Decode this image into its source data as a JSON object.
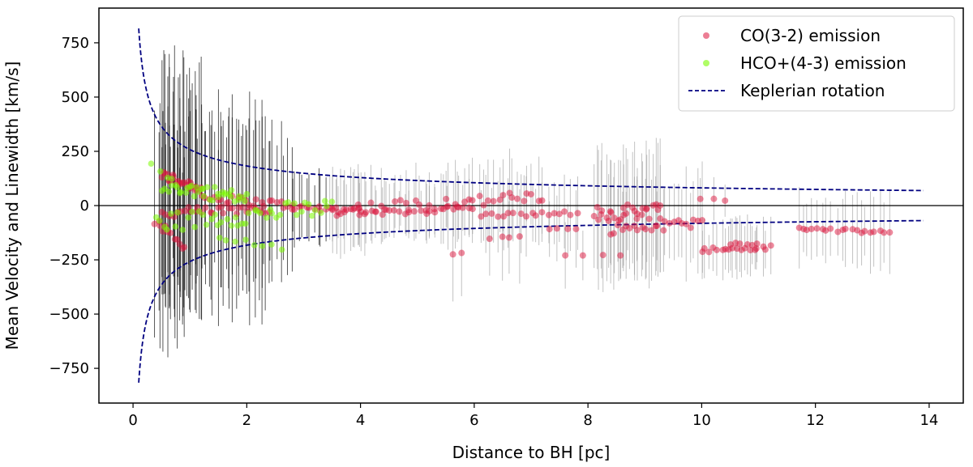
{
  "chart_data": {
    "type": "scatter",
    "title": "",
    "xlabel": "Distance to BH [pc]",
    "ylabel": "Mean Velocity and Linewidth [km/s]",
    "xlim": [
      -0.6,
      14.6
    ],
    "ylim": [
      -910,
      910
    ],
    "xticks": [
      0,
      2,
      4,
      6,
      8,
      10,
      12,
      14
    ],
    "yticks": [
      -750,
      -500,
      -250,
      0,
      250,
      500,
      750
    ],
    "xtick_labels": [
      "0",
      "2",
      "4",
      "6",
      "8",
      "10",
      "12",
      "14"
    ],
    "ytick_labels": [
      "−750",
      "−500",
      "−250",
      "0",
      "250",
      "500",
      "750"
    ],
    "grid": false,
    "legend_position": "top-right",
    "legend": [
      {
        "label": "CO(3-2) emission",
        "kind": "marker",
        "color": "#dc143c"
      },
      {
        "label": "HCO+(4-3) emission",
        "kind": "marker",
        "color": "#7cfc00"
      },
      {
        "label": "Keplerian rotation",
        "kind": "dashed-line",
        "color": "#000080"
      }
    ],
    "zero_line": 0,
    "keplerian": {
      "coefficient": 258,
      "x_start": 0.1,
      "x_end": 13.9
    },
    "colors": {
      "co": "#dc143c",
      "hco": "#7cfc00",
      "kepler": "#000080",
      "errorbar_inner": "#000000",
      "errorbar_outer": "#9a9a9a"
    },
    "series": [
      {
        "name": "CO(3-2) emission",
        "segments": [
          {
            "x0": 0.5,
            "x1": 1.2,
            "y0": 140,
            "y1": 80,
            "n": 24,
            "jitter": 25,
            "err": 500
          },
          {
            "x0": 0.5,
            "x1": 2.4,
            "y0": -40,
            "y1": -10,
            "n": 30,
            "jitter": 25,
            "err": 420
          },
          {
            "x0": 0.4,
            "x1": 0.9,
            "y0": -70,
            "y1": -190,
            "n": 12,
            "jitter": 20,
            "err": 450
          },
          {
            "x0": 1.2,
            "x1": 2.8,
            "y0": 40,
            "y1": 0,
            "n": 24,
            "jitter": 20,
            "err": 320
          },
          {
            "x0": 2.8,
            "x1": 4.0,
            "y0": -10,
            "y1": -20,
            "n": 20,
            "jitter": 15,
            "err": 150
          },
          {
            "x0": 3.5,
            "x1": 7.2,
            "y0": -20,
            "y1": 40,
            "n": 44,
            "jitter": 30,
            "err": 160
          },
          {
            "x0": 4.0,
            "x1": 6.0,
            "y0": -40,
            "y1": -10,
            "n": 22,
            "jitter": 15,
            "err": 130
          },
          {
            "x0": 6.1,
            "x1": 7.8,
            "y0": -45,
            "y1": -35,
            "n": 18,
            "jitter": 10,
            "err": 150
          },
          {
            "x0": 6.3,
            "x1": 6.8,
            "y0": -150,
            "y1": -150,
            "n": 4,
            "jitter": 8,
            "err": 170
          },
          {
            "x0": 5.6,
            "x1": 5.8,
            "y0": -220,
            "y1": -220,
            "n": 2,
            "jitter": 5,
            "err": 170
          },
          {
            "x0": 7.3,
            "x1": 7.8,
            "y0": -110,
            "y1": -110,
            "n": 4,
            "jitter": 5,
            "err": 140
          },
          {
            "x0": 8.1,
            "x1": 9.3,
            "y0": -40,
            "y1": -20,
            "n": 30,
            "jitter": 40,
            "err": 250
          },
          {
            "x0": 8.4,
            "x1": 10.0,
            "y0": -110,
            "y1": -80,
            "n": 24,
            "jitter": 25,
            "err": 220
          },
          {
            "x0": 7.6,
            "x1": 8.6,
            "y0": -225,
            "y1": -225,
            "n": 4,
            "jitter": 5,
            "err": 150
          },
          {
            "x0": 10.0,
            "x1": 10.4,
            "y0": 30,
            "y1": 25,
            "n": 3,
            "jitter": 5,
            "err": 100
          },
          {
            "x0": 10.0,
            "x1": 11.2,
            "y0": -205,
            "y1": -195,
            "n": 18,
            "jitter": 12,
            "err": 110
          },
          {
            "x0": 10.5,
            "x1": 11.0,
            "y0": -175,
            "y1": -180,
            "n": 6,
            "jitter": 8,
            "err": 110
          },
          {
            "x0": 11.7,
            "x1": 13.3,
            "y0": -105,
            "y1": -125,
            "n": 20,
            "jitter": 8,
            "err": 150
          }
        ]
      },
      {
        "name": "HCO+(4-3) emission",
        "segments": [
          {
            "x0": 0.3,
            "x1": 0.5,
            "y0": 195,
            "y1": 160,
            "n": 2,
            "jitter": 10,
            "err": 0
          },
          {
            "x0": 0.5,
            "x1": 2.0,
            "y0": 100,
            "y1": 30,
            "n": 38,
            "jitter": 35,
            "err": 0
          },
          {
            "x0": 0.4,
            "x1": 3.5,
            "y0": -80,
            "y1": -10,
            "n": 46,
            "jitter": 45,
            "err": 0
          },
          {
            "x0": 1.5,
            "x1": 2.6,
            "y0": -150,
            "y1": -200,
            "n": 8,
            "jitter": 15,
            "err": 0
          }
        ]
      }
    ]
  }
}
